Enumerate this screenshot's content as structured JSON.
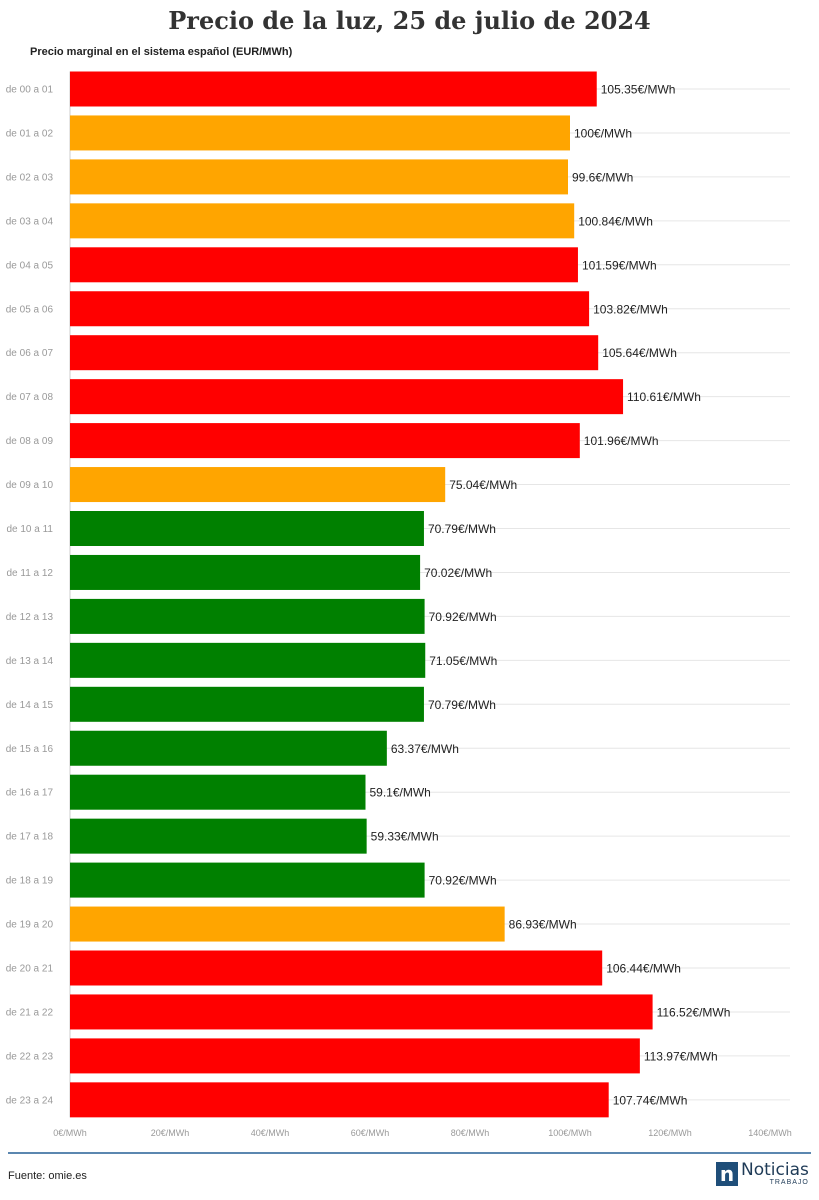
{
  "header": {
    "title": "Precio de la luz, 25 de julio de 2024",
    "subtitle": "Precio marginal en el sistema español (EUR/MWh)"
  },
  "footer": {
    "source": "Fuente: omie.es",
    "logo_name": "Noticias",
    "logo_sub": "TRABAJO",
    "logo_mark": "n"
  },
  "colors": {
    "high": "#ff0000",
    "medium": "#ffa500",
    "low": "#008000"
  },
  "chart_data": {
    "type": "bar",
    "orientation": "horizontal",
    "title": "Precio de la luz, 25 de julio de 2024",
    "subtitle": "Precio marginal en el sistema español (EUR/MWh)",
    "unit_suffix": "€/MWh",
    "xlim": [
      0,
      140
    ],
    "xticks": [
      0,
      20,
      40,
      60,
      80,
      100,
      120,
      140
    ],
    "xtick_labels": [
      "0€/MWh",
      "20€/MWh",
      "40€/MWh",
      "60€/MWh",
      "80€/MWh",
      "100€/MWh",
      "120€/MWh",
      "140€/MWh"
    ],
    "grid": true,
    "legend": "none",
    "categories": [
      "de 00 a 01",
      "de 01 a 02",
      "de 02 a 03",
      "de 03 a 04",
      "de 04 a 05",
      "de 05 a 06",
      "de 06 a 07",
      "de 07 a 08",
      "de 08 a 09",
      "de 09 a 10",
      "de 10 a 11",
      "de 11 a 12",
      "de 12 a 13",
      "de 13 a 14",
      "de 14 a 15",
      "de 15 a 16",
      "de 16 a 17",
      "de 17 a 18",
      "de 18 a 19",
      "de 19 a 20",
      "de 20 a 21",
      "de 21 a 22",
      "de 22 a 23",
      "de 23 a 24"
    ],
    "values": [
      105.35,
      100,
      99.6,
      100.84,
      101.59,
      103.82,
      105.64,
      110.61,
      101.96,
      75.04,
      70.79,
      70.02,
      70.92,
      71.05,
      70.79,
      63.37,
      59.1,
      59.33,
      70.92,
      86.93,
      106.44,
      116.52,
      113.97,
      107.74
    ],
    "labels": [
      "105.35€/MWh",
      "100€/MWh",
      "99.6€/MWh",
      "100.84€/MWh",
      "101.59€/MWh",
      "103.82€/MWh",
      "105.64€/MWh",
      "110.61€/MWh",
      "101.96€/MWh",
      "75.04€/MWh",
      "70.79€/MWh",
      "70.02€/MWh",
      "70.92€/MWh",
      "71.05€/MWh",
      "70.79€/MWh",
      "63.37€/MWh",
      "59.1€/MWh",
      "59.33€/MWh",
      "70.92€/MWh",
      "86.93€/MWh",
      "106.44€/MWh",
      "116.52€/MWh",
      "113.97€/MWh",
      "107.74€/MWh"
    ],
    "price_level": [
      "high",
      "medium",
      "medium",
      "medium",
      "high",
      "high",
      "high",
      "high",
      "high",
      "medium",
      "low",
      "low",
      "low",
      "low",
      "low",
      "low",
      "low",
      "low",
      "low",
      "medium",
      "high",
      "high",
      "high",
      "high"
    ]
  }
}
